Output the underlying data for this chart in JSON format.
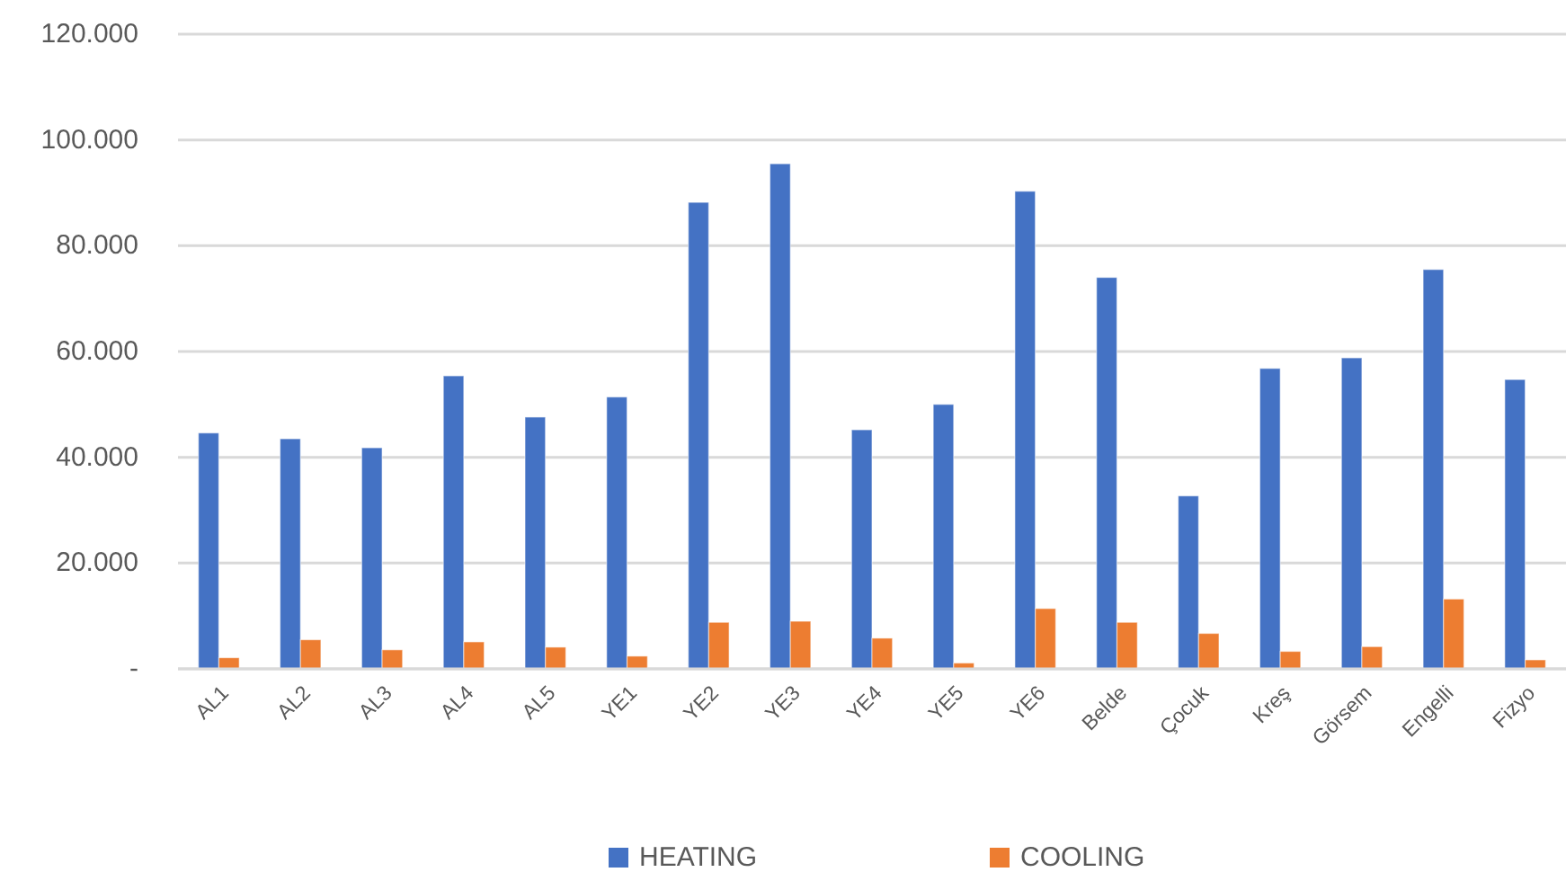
{
  "chart_data": {
    "type": "bar",
    "categories": [
      "AL1",
      "AL2",
      "AL3",
      "AL4",
      "AL5",
      "YE1",
      "YE2",
      "YE3",
      "YE4",
      "YE5",
      "YE6",
      "Belde",
      "Çocuk",
      "Kreş",
      "Görsem",
      "Engelli",
      "Fizyo"
    ],
    "series": [
      {
        "name": "HEATING",
        "color": "#4472c4",
        "values": [
          44600,
          43500,
          41800,
          55400,
          47600,
          51400,
          88200,
          95500,
          45200,
          50000,
          90300,
          74000,
          32700,
          56800,
          58800,
          75500,
          54700
        ]
      },
      {
        "name": "COOLING",
        "color": "#ed7d31",
        "values": [
          2100,
          5500,
          3600,
          5100,
          4100,
          2400,
          8800,
          9000,
          5800,
          1100,
          11400,
          8800,
          6700,
          3300,
          4200,
          13200,
          1700
        ]
      }
    ],
    "ylim": [
      0,
      120000
    ],
    "yticks": [
      {
        "value": 0,
        "label": "-"
      },
      {
        "value": 20000,
        "label": "20.000"
      },
      {
        "value": 40000,
        "label": "40.000"
      },
      {
        "value": 60000,
        "label": "60.000"
      },
      {
        "value": 80000,
        "label": "80.000"
      },
      {
        "value": 100000,
        "label": "100.000"
      },
      {
        "value": 120000,
        "label": "120.000"
      }
    ],
    "grid": "y",
    "legend": "bottom"
  }
}
